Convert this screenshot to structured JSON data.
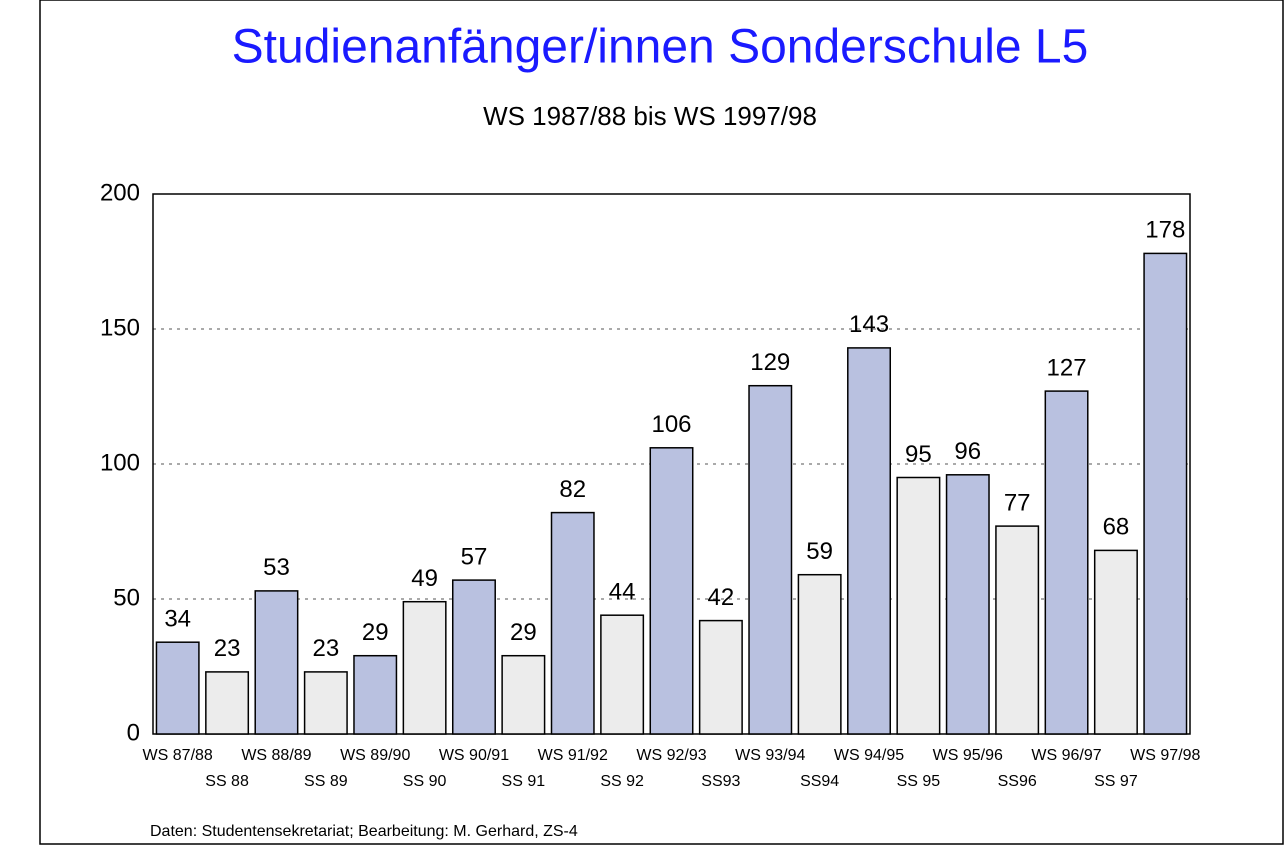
{
  "chart_data": {
    "type": "bar",
    "title": "Studienanfänger/innen Sonderschule L5",
    "subtitle": "WS 1987/88 bis WS 1997/98",
    "categories": [
      "WS 87/88",
      "SS 88",
      "WS 88/89",
      "SS 89",
      "WS 89/90",
      "SS 90",
      "WS 90/91",
      "SS 91",
      "WS 91/92",
      "SS 92",
      "WS 92/93",
      "SS93",
      "WS 93/94",
      "SS94",
      "WS 94/95",
      "SS 95",
      "WS 95/96",
      "SS96",
      "WS 96/97",
      "SS 97",
      "WS 97/98"
    ],
    "values": [
      34,
      23,
      53,
      23,
      29,
      49,
      57,
      29,
      82,
      44,
      106,
      42,
      129,
      59,
      143,
      95,
      96,
      77,
      127,
      68,
      178
    ],
    "colors": [
      "#b9c1e0",
      "#ececec",
      "#b9c1e0",
      "#ececec",
      "#b9c1e0",
      "#ececec",
      "#b9c1e0",
      "#ececec",
      "#b9c1e0",
      "#ececec",
      "#b9c1e0",
      "#ececec",
      "#b9c1e0",
      "#ececec",
      "#b9c1e0",
      "#ececec",
      "#b9c1e0",
      "#ececec",
      "#b9c1e0",
      "#ececec",
      "#b9c1e0"
    ],
    "ylim": [
      0,
      200
    ],
    "yticks": [
      0,
      50,
      100,
      150,
      200
    ],
    "grid": true,
    "source": "Daten: Studentensekretariat;  Bearbeitung: M. Gerhard, ZS-4"
  }
}
